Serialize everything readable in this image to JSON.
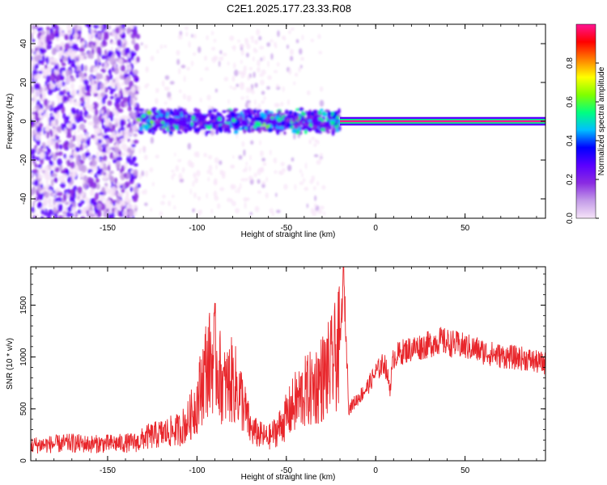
{
  "title": "C2E1.2025.177.23.33.R08",
  "colors": {
    "snr_line": "#e8262b",
    "frame": "#000000"
  },
  "chart_data": [
    {
      "type": "heatmap",
      "xlabel": "Height of straight line (km)",
      "ylabel": "Frequency (Hz)",
      "colorbar_label": "Normalized spectral amplitude",
      "xlim": [
        -193,
        95
      ],
      "ylim": [
        -50,
        50
      ],
      "x_ticks": [
        -150,
        -100,
        -50,
        0,
        50
      ],
      "x_tick_labels": [
        "-150",
        "-100",
        "-50",
        "0",
        "50"
      ],
      "y_ticks": [
        -40,
        -20,
        0,
        20,
        40
      ],
      "y_tick_labels": [
        "-40",
        "-20",
        "0",
        "20",
        "40"
      ],
      "colorbar_range": [
        0,
        1
      ],
      "colorbar_ticks": [
        0.0,
        0.2,
        0.4,
        0.6,
        0.8
      ],
      "colorbar_tick_labels": [
        "0.0",
        "0.2",
        "0.4",
        "0.6",
        "0.8"
      ],
      "colormap": [
        "#f6e4f8",
        "#c39be8",
        "#8a2be2",
        "#5a00ff",
        "#0000ff",
        "#00bfff",
        "#00ff80",
        "#80ff00",
        "#ffff00",
        "#ff8000",
        "#ff0000",
        "#ff1493"
      ],
      "regions": [
        {
          "x_from": -193,
          "x_to": -133,
          "f_half_width": 50,
          "level": 0.15
        },
        {
          "x_from": -133,
          "x_to": -20,
          "f_half_width": 6,
          "level": 0.3
        },
        {
          "x_from": -20,
          "x_to": 95,
          "f_half_width": 1,
          "level": 0.95
        }
      ]
    },
    {
      "type": "line",
      "xlabel": "Height of straight line (km)",
      "ylabel": "SNR (10 * v/v)",
      "xlim": [
        -193,
        95
      ],
      "ylim": [
        0,
        1870
      ],
      "x_ticks": [
        -150,
        -100,
        -50,
        0,
        50
      ],
      "x_tick_labels": [
        "-150",
        "-100",
        "-50",
        "0",
        "50"
      ],
      "y_ticks": [
        0,
        500,
        1000,
        1500
      ],
      "y_tick_labels": [
        "0",
        "500",
        "1000",
        "1500"
      ],
      "series": [
        {
          "x": [
            -193,
            -180,
            -170,
            -160,
            -150,
            -140,
            -132,
            -130,
            -120,
            -110,
            -105,
            -100,
            -95,
            -90,
            -85,
            -80,
            -75,
            -70,
            -65,
            -60,
            -55,
            -50,
            -45,
            -40,
            -35,
            -30,
            -25,
            -20,
            -18,
            -15,
            -10,
            -5,
            0,
            5,
            8,
            10,
            15,
            20,
            25,
            30,
            35,
            40,
            45,
            50,
            55,
            60,
            65,
            70,
            75,
            80,
            85,
            90,
            95
          ],
          "y": [
            150,
            160,
            170,
            160,
            165,
            170,
            180,
            220,
            260,
            300,
            380,
            560,
            900,
            1000,
            700,
            780,
            600,
            300,
            250,
            220,
            300,
            420,
            560,
            650,
            700,
            800,
            900,
            1100,
            1800,
            500,
            600,
            700,
            850,
            950,
            700,
            1000,
            1050,
            1080,
            1100,
            1120,
            1160,
            1140,
            1120,
            1100,
            1080,
            1050,
            1030,
            1010,
            1000,
            990,
            980,
            950,
            940
          ]
        }
      ]
    }
  ]
}
